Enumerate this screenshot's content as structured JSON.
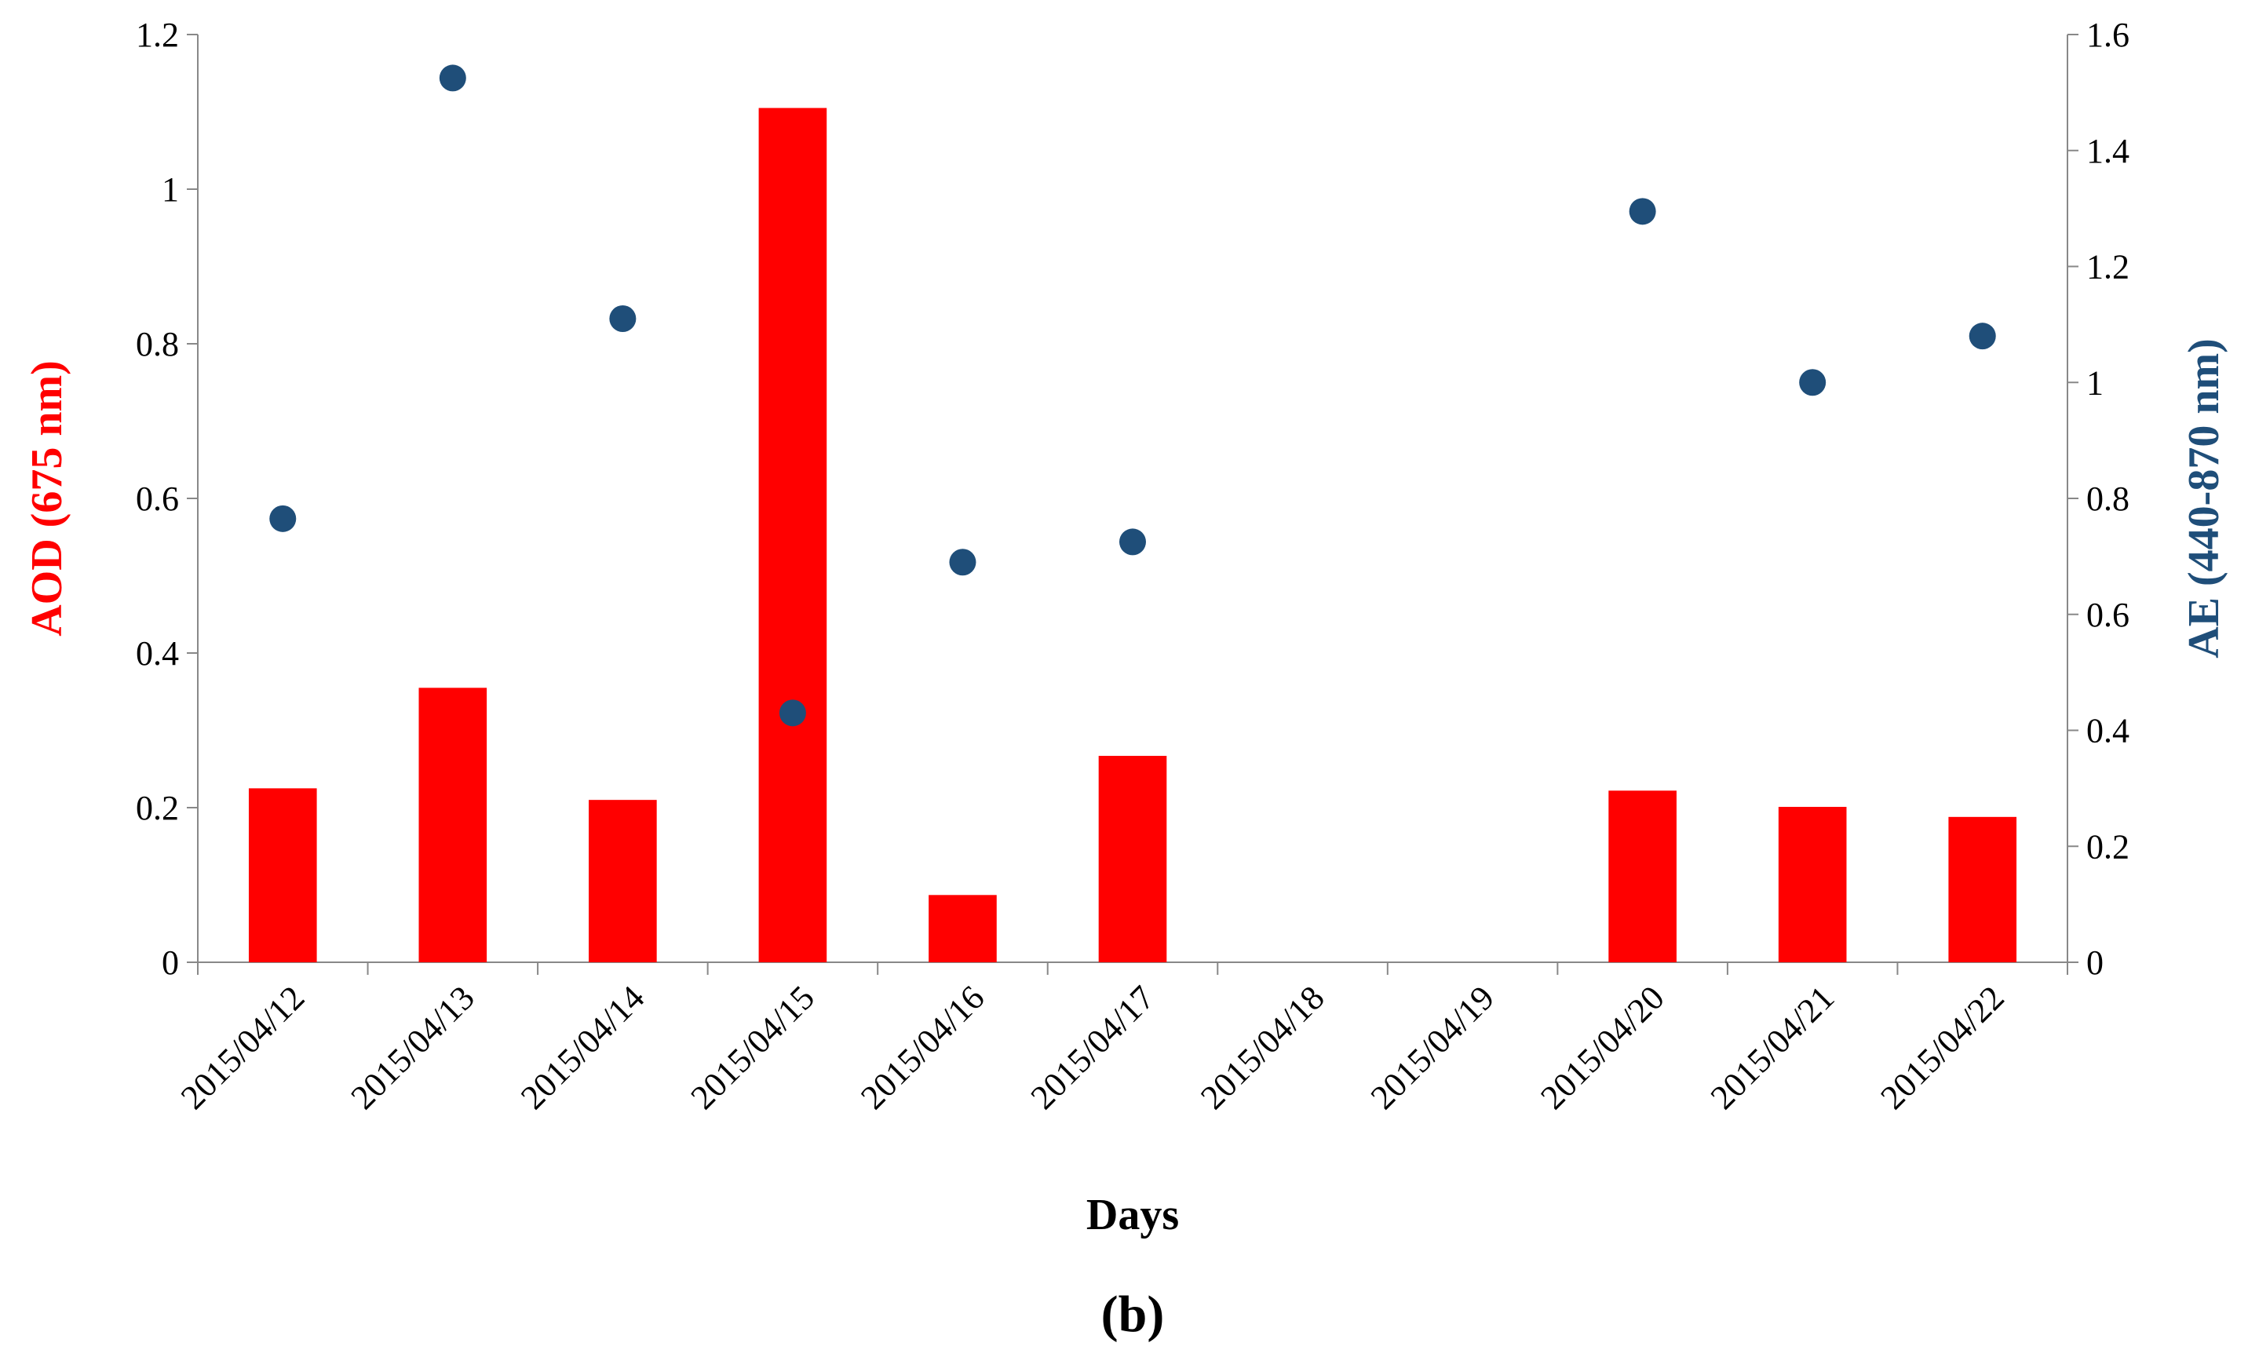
{
  "chart_data": {
    "type": "bar",
    "categories": [
      "2015/04/12",
      "2015/04/13",
      "2015/04/14",
      "2015/04/15",
      "2015/04/16",
      "2015/04/17",
      "2015/04/18",
      "2015/04/19",
      "2015/04/20",
      "2015/04/21",
      "2015/04/22"
    ],
    "series": [
      {
        "name": "AOD (675 nm)",
        "type": "bar",
        "axis": "left",
        "color": "#ff0000",
        "values": [
          0.225,
          0.355,
          0.21,
          1.105,
          0.087,
          0.267,
          null,
          null,
          0.222,
          0.201,
          0.188
        ]
      },
      {
        "name": "AE (440-870 nm)",
        "type": "scatter",
        "axis": "right",
        "color": "#1f4e79",
        "values": [
          0.765,
          1.525,
          1.11,
          0.43,
          0.69,
          0.725,
          null,
          null,
          1.295,
          1.0,
          1.08
        ]
      }
    ],
    "xlabel": "Days",
    "ylabel_left": "AOD (675 nm)",
    "ylabel_right": "AE (440-870 nm)",
    "ylim_left": [
      0,
      1.2
    ],
    "ylim_right": [
      0,
      1.6
    ],
    "yticks_left": [
      "0",
      "0.2",
      "0.4",
      "0.6",
      "0.8",
      "1",
      "1.2"
    ],
    "yticks_right": [
      "0",
      "0.2",
      "0.4",
      "0.6",
      "0.8",
      "1",
      "1.2",
      "1.4",
      "1.6"
    ],
    "grid": false,
    "legend": "none",
    "panel_label": "(b)",
    "colors": {
      "left_axis_title": "#ff0000",
      "right_axis_title": "#1f4e79",
      "axis_line": "#888888"
    }
  }
}
